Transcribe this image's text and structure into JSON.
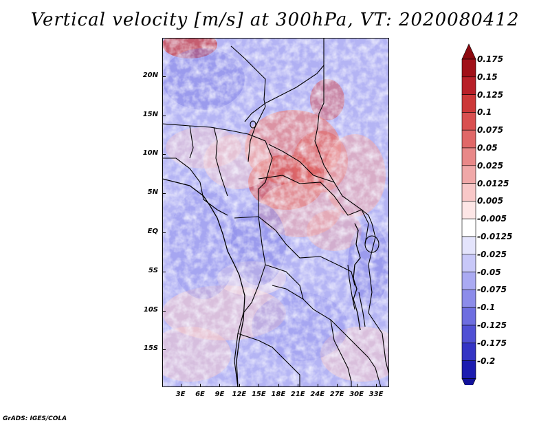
{
  "title": "Vertical velocity [m/s] at 300hPa, VT: 2020080412",
  "footer": "GrADS: IGES/COLA",
  "lat_ticks": [
    {
      "label": "20N",
      "lat": 20
    },
    {
      "label": "15N",
      "lat": 15
    },
    {
      "label": "10N",
      "lat": 10
    },
    {
      "label": "5N",
      "lat": 5
    },
    {
      "label": "EQ",
      "lat": 0
    },
    {
      "label": "5S",
      "lat": -5
    },
    {
      "label": "10S",
      "lat": -10
    },
    {
      "label": "15S",
      "lat": -15
    }
  ],
  "lon_ticks": [
    {
      "label": "3E",
      "lon": 3
    },
    {
      "label": "6E",
      "lon": 6
    },
    {
      "label": "9E",
      "lon": 9
    },
    {
      "label": "12E",
      "lon": 12
    },
    {
      "label": "15E",
      "lon": 15
    },
    {
      "label": "18E",
      "lon": 18
    },
    {
      "label": "21E",
      "lon": 21
    },
    {
      "label": "24E",
      "lon": 24
    },
    {
      "label": "27E",
      "lon": 27
    },
    {
      "label": "30E",
      "lon": 30
    },
    {
      "label": "33E",
      "lon": 33
    }
  ],
  "map_extent": {
    "lon_min": 0.2,
    "lon_max": 35.0,
    "lat_min": -19.8,
    "lat_max": 24.9
  },
  "colorbar": {
    "levels": [
      {
        "label": "0.175",
        "color": "#a01018"
      },
      {
        "label": "0.15",
        "color": "#b82028"
      },
      {
        "label": "0.125",
        "color": "#cc3838"
      },
      {
        "label": "0.1",
        "color": "#d95050"
      },
      {
        "label": "0.075",
        "color": "#e06868"
      },
      {
        "label": "0.05",
        "color": "#e88888"
      },
      {
        "label": "0.025",
        "color": "#f0a8a8"
      },
      {
        "label": "0.0125",
        "color": "#f8c8c8"
      },
      {
        "label": "0.005",
        "color": "#fde6e6"
      },
      {
        "label": "-0.005",
        "color": "#ffffff"
      },
      {
        "label": "-0.0125",
        "color": "#e4e4fc"
      },
      {
        "label": "-0.025",
        "color": "#c8c8f8"
      },
      {
        "label": "-0.05",
        "color": "#aaaaf2"
      },
      {
        "label": "-0.075",
        "color": "#8c8cea"
      },
      {
        "label": "-0.1",
        "color": "#6e6ee0"
      },
      {
        "label": "-0.125",
        "color": "#5050d4"
      },
      {
        "label": "-0.175",
        "color": "#3434c4"
      },
      {
        "label": "-0.2",
        "color": "#1c1cb0"
      }
    ],
    "top_color": "#8c0a10",
    "bottom_color": "#12129a"
  }
}
